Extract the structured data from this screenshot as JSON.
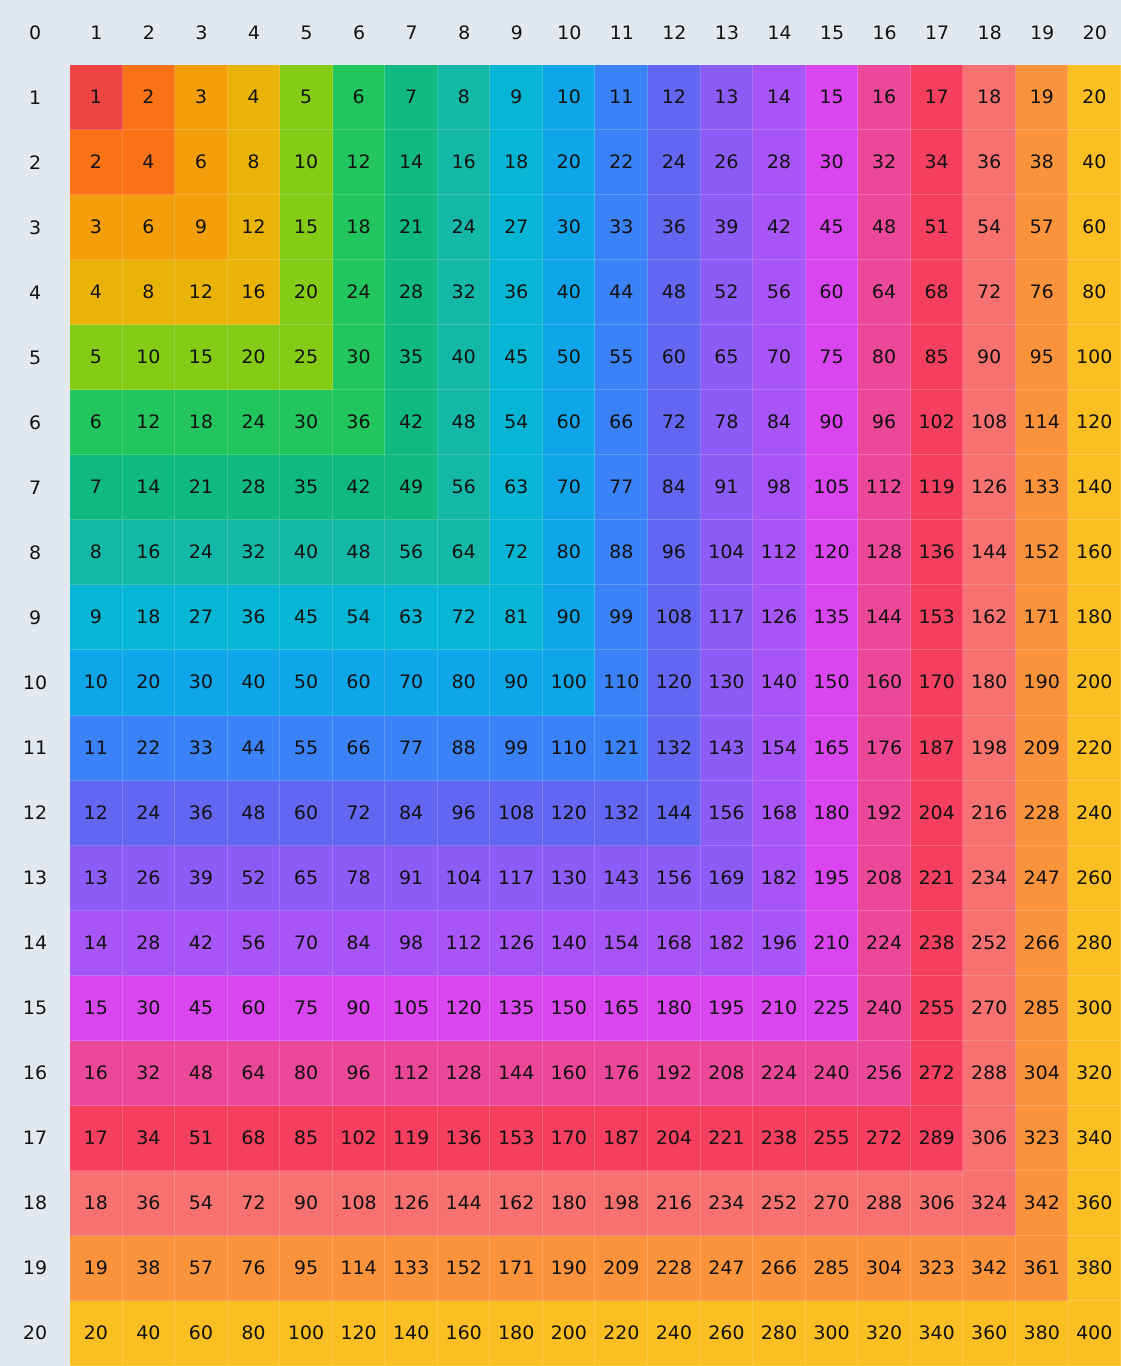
{
  "corner": "0",
  "column_headers": [
    "1",
    "2",
    "3",
    "4",
    "5",
    "6",
    "7",
    "8",
    "9",
    "10",
    "11",
    "12",
    "13",
    "14",
    "15",
    "16",
    "17",
    "18",
    "19",
    "20"
  ],
  "row_headers": [
    "1",
    "2",
    "3",
    "4",
    "5",
    "6",
    "7",
    "8",
    "9",
    "10",
    "11",
    "12",
    "13",
    "14",
    "15",
    "16",
    "17",
    "18",
    "19",
    "20"
  ],
  "colors": [
    "#ef4444",
    "#f97316",
    "#f59e0b",
    "#eab308",
    "#84cc16",
    "#22c55e",
    "#10b981",
    "#14b8a6",
    "#06b6d4",
    "#0ea5e9",
    "#3b82f6",
    "#6366f1",
    "#8b5cf6",
    "#a855f7",
    "#d946ef",
    "#ec4899",
    "#f43f5e",
    "#f87171",
    "#fb923c",
    "#fbbf24"
  ],
  "rows": [
    [
      1,
      2,
      3,
      4,
      5,
      6,
      7,
      8,
      9,
      10,
      11,
      12,
      13,
      14,
      15,
      16,
      17,
      18,
      19,
      20
    ],
    [
      2,
      4,
      6,
      8,
      10,
      12,
      14,
      16,
      18,
      20,
      22,
      24,
      26,
      28,
      30,
      32,
      34,
      36,
      38,
      40
    ],
    [
      3,
      6,
      9,
      12,
      15,
      18,
      21,
      24,
      27,
      30,
      33,
      36,
      39,
      42,
      45,
      48,
      51,
      54,
      57,
      60
    ],
    [
      4,
      8,
      12,
      16,
      20,
      24,
      28,
      32,
      36,
      40,
      44,
      48,
      52,
      56,
      60,
      64,
      68,
      72,
      76,
      80
    ],
    [
      5,
      10,
      15,
      20,
      25,
      30,
      35,
      40,
      45,
      50,
      55,
      60,
      65,
      70,
      75,
      80,
      85,
      90,
      95,
      100
    ],
    [
      6,
      12,
      18,
      24,
      30,
      36,
      42,
      48,
      54,
      60,
      66,
      72,
      78,
      84,
      90,
      96,
      102,
      108,
      114,
      120
    ],
    [
      7,
      14,
      21,
      28,
      35,
      42,
      49,
      56,
      63,
      70,
      77,
      84,
      91,
      98,
      105,
      112,
      119,
      126,
      133,
      140
    ],
    [
      8,
      16,
      24,
      32,
      40,
      48,
      56,
      64,
      72,
      80,
      88,
      96,
      104,
      112,
      120,
      128,
      136,
      144,
      152,
      160
    ],
    [
      9,
      18,
      27,
      36,
      45,
      54,
      63,
      72,
      81,
      90,
      99,
      108,
      117,
      126,
      135,
      144,
      153,
      162,
      171,
      180
    ],
    [
      10,
      20,
      30,
      40,
      50,
      60,
      70,
      80,
      90,
      100,
      110,
      120,
      130,
      140,
      150,
      160,
      170,
      180,
      190,
      200
    ],
    [
      11,
      22,
      33,
      44,
      55,
      66,
      77,
      88,
      99,
      110,
      121,
      132,
      143,
      154,
      165,
      176,
      187,
      198,
      209,
      220
    ],
    [
      12,
      24,
      36,
      48,
      60,
      72,
      84,
      96,
      108,
      120,
      132,
      144,
      156,
      168,
      180,
      192,
      204,
      216,
      228,
      240
    ],
    [
      13,
      26,
      39,
      52,
      65,
      78,
      91,
      104,
      117,
      130,
      143,
      156,
      169,
      182,
      195,
      208,
      221,
      234,
      247,
      260
    ],
    [
      14,
      28,
      42,
      56,
      70,
      84,
      98,
      112,
      126,
      140,
      154,
      168,
      182,
      196,
      210,
      224,
      238,
      252,
      266,
      280
    ],
    [
      15,
      30,
      45,
      60,
      75,
      90,
      105,
      120,
      135,
      150,
      165,
      180,
      195,
      210,
      225,
      240,
      255,
      270,
      285,
      300
    ],
    [
      16,
      32,
      48,
      64,
      80,
      96,
      112,
      128,
      144,
      160,
      176,
      192,
      208,
      224,
      240,
      256,
      272,
      288,
      304,
      320
    ],
    [
      17,
      34,
      51,
      68,
      85,
      102,
      119,
      136,
      153,
      170,
      187,
      204,
      221,
      238,
      255,
      272,
      289,
      306,
      323,
      340
    ],
    [
      18,
      36,
      54,
      72,
      90,
      108,
      126,
      144,
      162,
      180,
      198,
      216,
      234,
      252,
      270,
      288,
      306,
      324,
      342,
      360
    ],
    [
      19,
      38,
      57,
      76,
      95,
      114,
      133,
      152,
      171,
      190,
      209,
      228,
      247,
      266,
      285,
      304,
      323,
      342,
      361,
      380
    ],
    [
      20,
      40,
      60,
      80,
      100,
      120,
      140,
      160,
      180,
      200,
      220,
      240,
      260,
      280,
      300,
      320,
      340,
      360,
      380,
      400
    ]
  ]
}
